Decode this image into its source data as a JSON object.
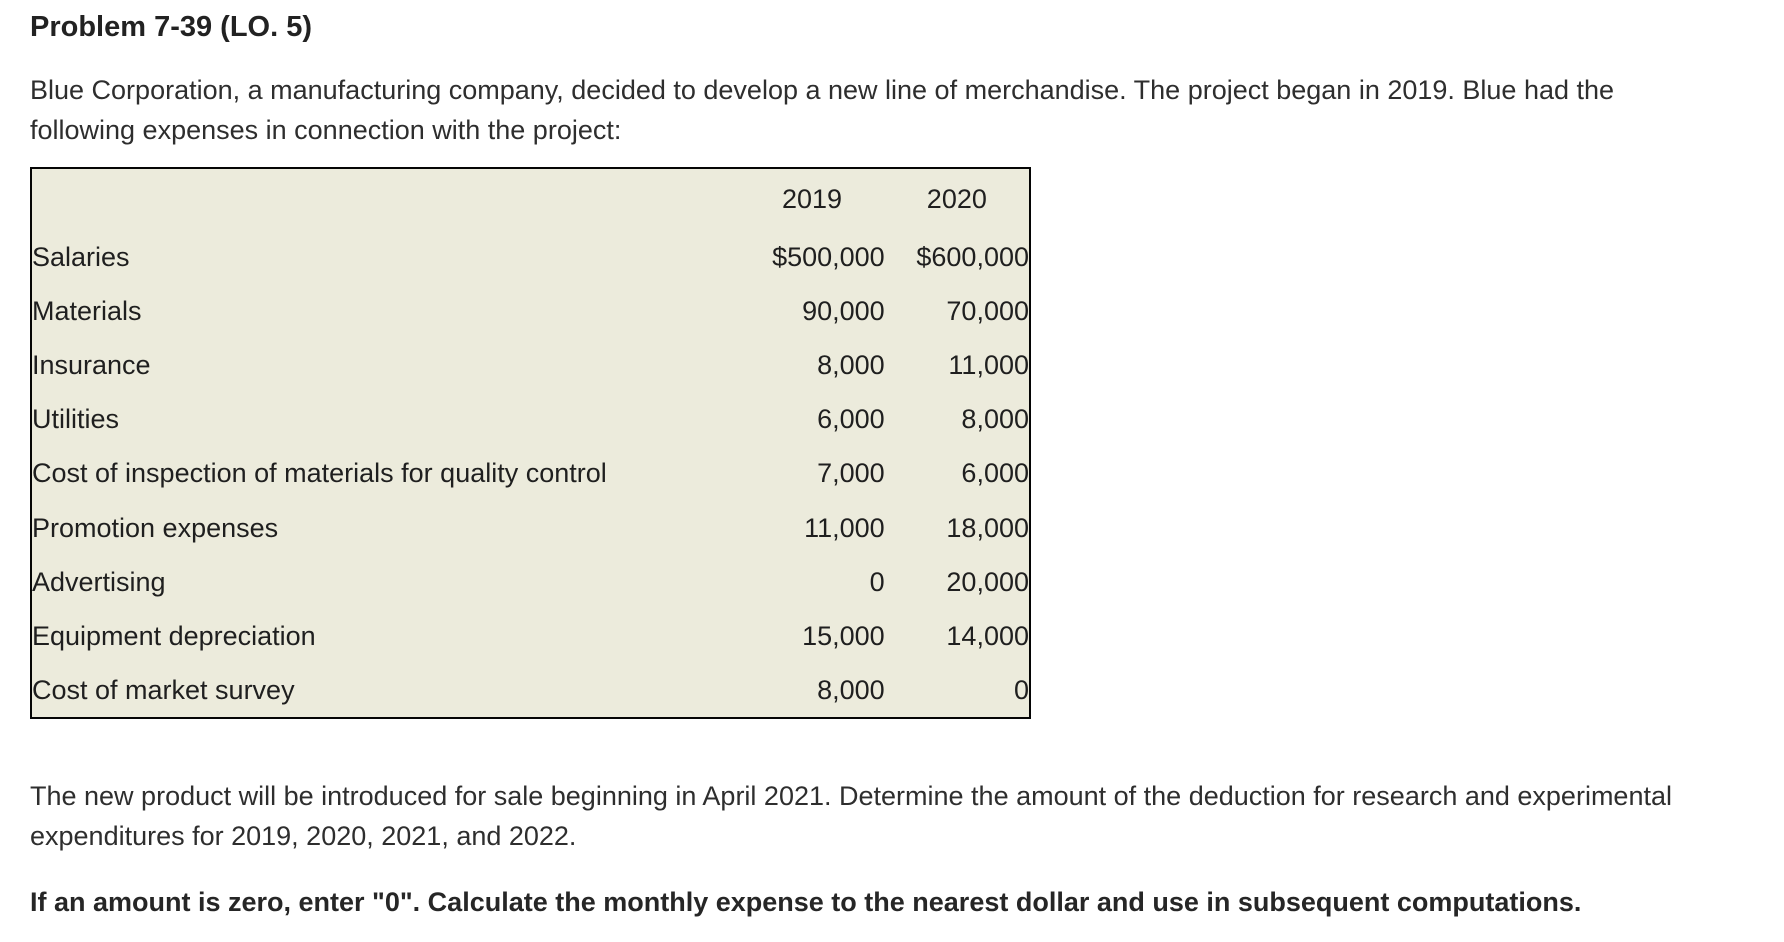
{
  "page": {
    "title": "Problem 7-39 (LO. 5)",
    "intro_lines": [
      "Blue Corporation, a manufacturing company, decided to develop a new line of merchandise. The project began in 2019. Blue had the",
      "following expenses in connection with the project:"
    ],
    "question_lines": [
      "The new product will be introduced for sale beginning in April 2021. Determine the amount of the deduction for research and experimental",
      "expenditures for 2019, 2020, 2021, and 2022."
    ],
    "instruction": "If an amount is zero, enter \"0\". Calculate the monthly expense to the nearest dollar and use in subsequent computations."
  },
  "expense_table": {
    "columns": [
      "2019",
      "2020"
    ],
    "rows": [
      {
        "label": "Salaries",
        "y2019": "$500,000",
        "y2020": "$600,000"
      },
      {
        "label": "Materials",
        "y2019": "90,000",
        "y2020": "70,000"
      },
      {
        "label": "Insurance",
        "y2019": "8,000",
        "y2020": "11,000"
      },
      {
        "label": "Utilities",
        "y2019": "6,000",
        "y2020": "8,000"
      },
      {
        "label": "Cost of inspection of materials for quality control",
        "y2019": "7,000",
        "y2020": "6,000"
      },
      {
        "label": "Promotion expenses",
        "y2019": "11,000",
        "y2020": "18,000"
      },
      {
        "label": "Advertising",
        "y2019": "0",
        "y2020": "20,000"
      },
      {
        "label": "Equipment depreciation",
        "y2019": "15,000",
        "y2020": "14,000"
      },
      {
        "label": "Cost of market survey",
        "y2019": "8,000",
        "y2020": "0"
      }
    ]
  },
  "colors": {
    "page_background": "#ffffff",
    "table_background": "#ecebdc",
    "table_border": "#050505",
    "text": "#2e2e2e"
  }
}
